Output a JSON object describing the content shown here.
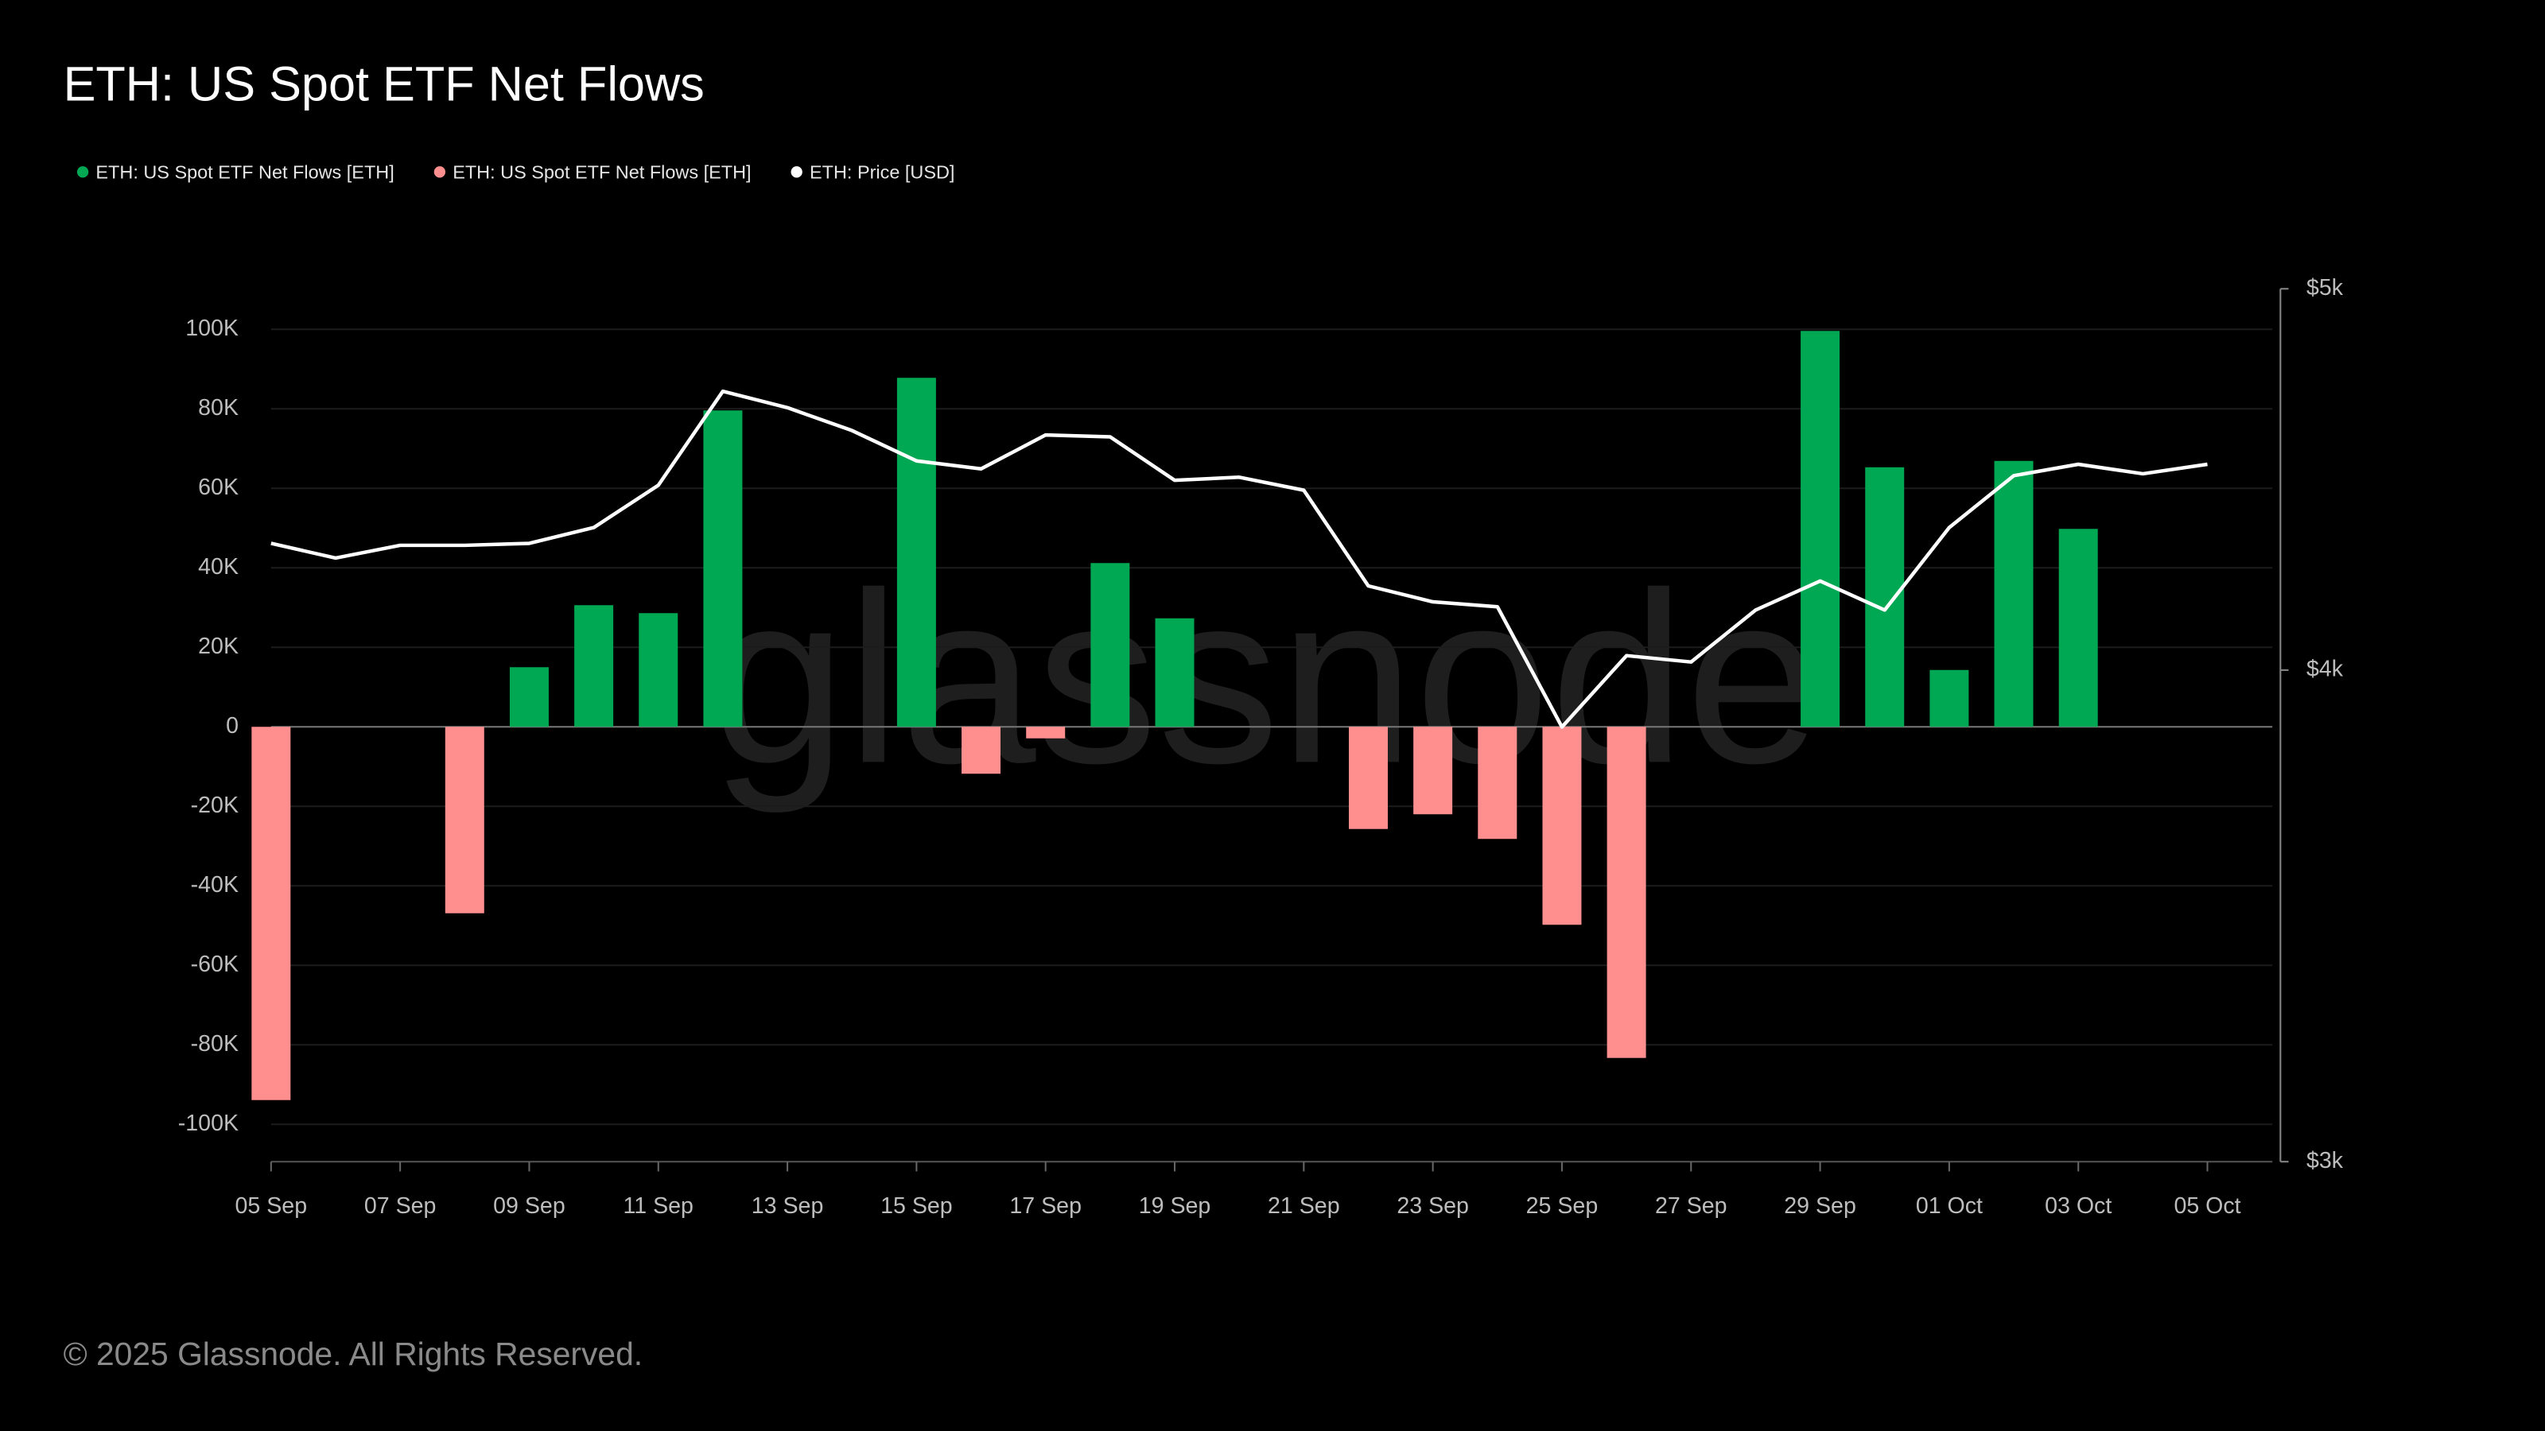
{
  "chart_data": {
    "type": "bar-line",
    "title": "ETH: US Spot ETF Net Flows",
    "watermark": "glassnode",
    "footer": "© 2025 Glassnode. All Rights Reserved.",
    "categories": [
      "05 Sep",
      null,
      "07 Sep",
      null,
      "09 Sep",
      null,
      "11 Sep",
      null,
      "13 Sep",
      null,
      "15 Sep",
      null,
      "17 Sep",
      null,
      "19 Sep",
      null,
      "21 Sep",
      null,
      "23 Sep",
      null,
      "25 Sep",
      null,
      "27 Sep",
      null,
      "29 Sep",
      null,
      "01 Oct",
      null,
      "03 Oct",
      null,
      "05 Oct"
    ],
    "series": [
      {
        "name": "ETH: US Spot ETF Net Flows [ETH]",
        "color": "#00a854",
        "kind": "bar",
        "values": [
          null,
          null,
          null,
          null,
          15000,
          30600,
          28600,
          79600,
          null,
          null,
          87800,
          null,
          null,
          41200,
          27300,
          null,
          null,
          null,
          null,
          null,
          null,
          null,
          null,
          null,
          99600,
          65300,
          14300,
          66900,
          49800,
          null,
          null
        ]
      },
      {
        "name": "ETH: US Spot ETF Net Flows [ETH]",
        "color": "#ff8f8f",
        "kind": "bar",
        "values": [
          -93900,
          null,
          null,
          -46900,
          null,
          null,
          null,
          null,
          null,
          null,
          null,
          -11800,
          -2900,
          null,
          null,
          null,
          null,
          -25700,
          -22000,
          -28200,
          -49800,
          -83300,
          null,
          null,
          null,
          null,
          null,
          null,
          null,
          null,
          null
        ]
      },
      {
        "name": "ETH: Price [USD]",
        "color": "#ffffff",
        "kind": "line",
        "axis": "y2",
        "values": [
          4308,
          4271,
          4303,
          4303,
          4308,
          4348,
          4457,
          4709,
          4664,
          4602,
          4521,
          4500,
          4590,
          4585,
          4470,
          4478,
          4444,
          4202,
          4163,
          4151,
          3869,
          4034,
          4019,
          4143,
          4214,
          4143,
          4348,
          4482,
          4512,
          4487,
          4512
        ]
      }
    ],
    "ylim": [
      -109400,
      110200
    ],
    "yticks": [
      {
        "value": -100000,
        "label": "-100K"
      },
      {
        "value": -80000,
        "label": "-80K"
      },
      {
        "value": -60000,
        "label": "-60K"
      },
      {
        "value": -40000,
        "label": "-40K"
      },
      {
        "value": -20000,
        "label": "-20K"
      },
      0,
      {
        "value": 20000,
        "label": "20K"
      },
      {
        "value": 40000,
        "label": "40K"
      },
      {
        "value": 60000,
        "label": "60K"
      },
      {
        "value": 80000,
        "label": "80K"
      },
      {
        "value": 100000,
        "label": "100K"
      }
    ],
    "y2lim": [
      3000,
      5000
    ],
    "y2ticks": [
      {
        "value": 3000,
        "label": "$3k"
      },
      {
        "value": 4000,
        "label": "$4k"
      },
      {
        "value": 5000,
        "label": "$5k"
      }
    ],
    "y2log": true,
    "grid": true,
    "legend": "top-left"
  }
}
